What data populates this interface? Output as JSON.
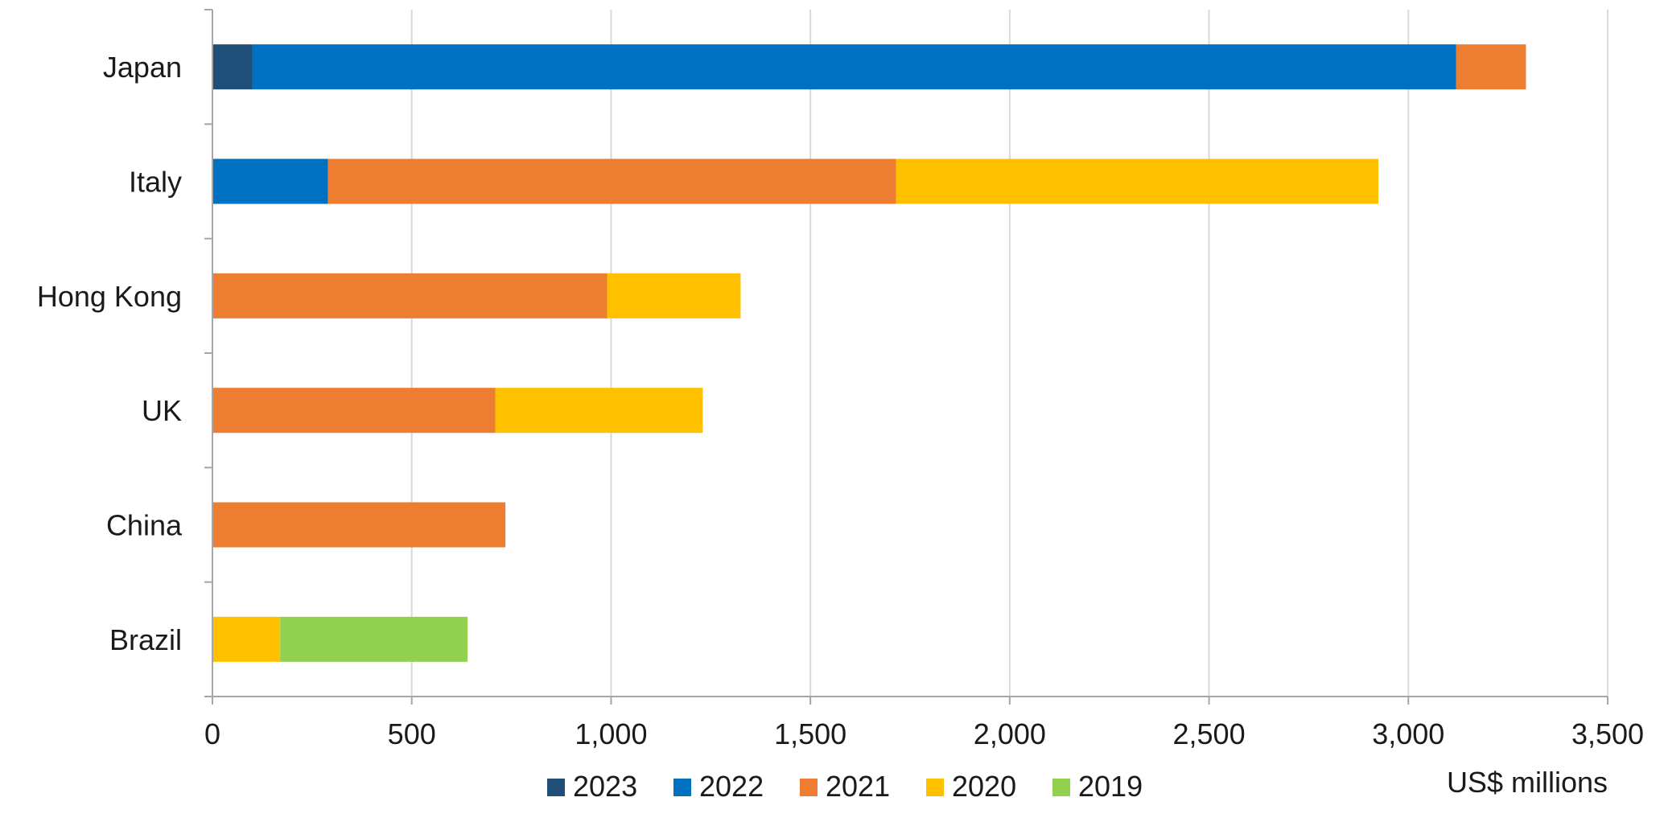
{
  "chart_data": {
    "type": "bar",
    "orientation": "horizontal",
    "stacked": true,
    "title": "",
    "xlabel": "US$ millions",
    "ylabel": "",
    "xlim": [
      0,
      3500
    ],
    "x_ticks": [
      0,
      500,
      1000,
      1500,
      2000,
      2500,
      3000,
      3500
    ],
    "x_tick_labels": [
      "0",
      "500",
      "1,000",
      "1,500",
      "2,000",
      "2,500",
      "3,000",
      "3,500"
    ],
    "grid": "vertical",
    "legend_position": "bottom",
    "categories": [
      "Japan",
      "Italy",
      "Hong Kong",
      "UK",
      "China",
      "Brazil"
    ],
    "series": [
      {
        "name": "2023",
        "color": "#1f4e79",
        "values": [
          100,
          0,
          0,
          0,
          0,
          0
        ]
      },
      {
        "name": "2022",
        "color": "#0070c0",
        "values": [
          3020,
          290,
          0,
          0,
          0,
          0
        ]
      },
      {
        "name": "2021",
        "color": "#ed7d31",
        "values": [
          175,
          1425,
          990,
          710,
          735,
          0
        ]
      },
      {
        "name": "2020",
        "color": "#ffc000",
        "values": [
          0,
          1210,
          335,
          520,
          0,
          170
        ]
      },
      {
        "name": "2019",
        "color": "#92d050",
        "values": [
          0,
          0,
          0,
          0,
          0,
          470
        ]
      }
    ]
  }
}
